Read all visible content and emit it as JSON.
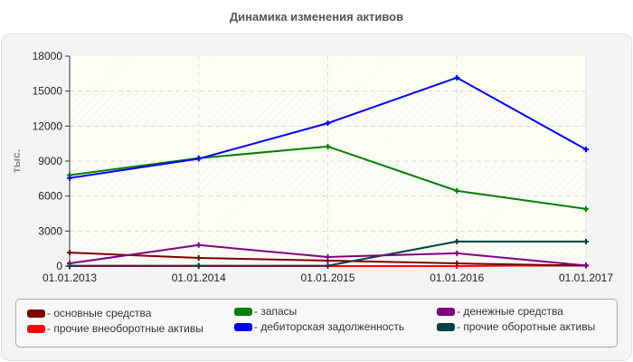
{
  "title": "Динамика изменения активов",
  "chart_data": {
    "type": "line",
    "title": "Динамика изменения активов",
    "xlabel": "",
    "ylabel": "тыс.",
    "categories": [
      "01.01.2013",
      "01.01.2014",
      "01.01.2015",
      "01.01.2016",
      "01.01.2017"
    ],
    "ylim": [
      0,
      18000
    ],
    "yticks": [
      0,
      3000,
      6000,
      9000,
      12000,
      15000,
      18000
    ],
    "grid": true,
    "legend_position": "bottom",
    "series": [
      {
        "name": "основные средства",
        "color": "#800000",
        "values": [
          1150,
          700,
          470,
          230,
          30
        ]
      },
      {
        "name": "прочие внеоборотные активы",
        "color": "#ff0000",
        "values": [
          0,
          0,
          0,
          0,
          80
        ]
      },
      {
        "name": "запасы",
        "color": "#008000",
        "values": [
          7800,
          9250,
          10250,
          6450,
          4900
        ]
      },
      {
        "name": "дебиторская задолженность",
        "color": "#0000ff",
        "values": [
          7550,
          9200,
          12250,
          16150,
          10000
        ]
      },
      {
        "name": "денежные средства",
        "color": "#800080",
        "values": [
          230,
          1800,
          780,
          1100,
          50
        ]
      },
      {
        "name": "прочие оборотные активы",
        "color": "#004040",
        "values": [
          30,
          30,
          30,
          2100,
          2100
        ]
      }
    ]
  },
  "legend": {
    "items": [
      {
        "label": "- основные средства",
        "color": "#800000"
      },
      {
        "label": "- прочие внеоборотные активы",
        "color": "#ff0000"
      },
      {
        "label": "- запасы",
        "color": "#008000"
      },
      {
        "label": "- дебиторская задолженность",
        "color": "#0000ff"
      },
      {
        "label": "- денежные средства",
        "color": "#800080"
      },
      {
        "label": "- прочие оборотные активы",
        "color": "#004040"
      }
    ]
  }
}
